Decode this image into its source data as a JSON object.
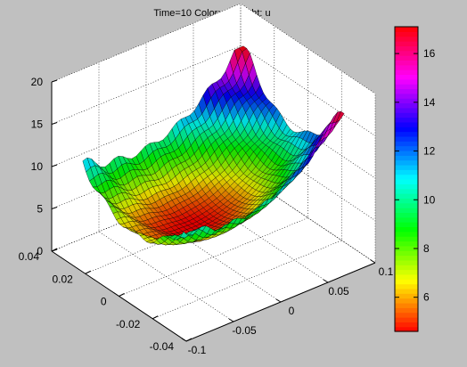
{
  "chart_data": {
    "type": "surface3d",
    "title": "Time=10   Color: u  Height: u",
    "xlabel": "",
    "ylabel": "",
    "zlabel": "",
    "xlim": [
      -0.1,
      0.1
    ],
    "ylim": [
      -0.04,
      0.04
    ],
    "zlim": [
      0,
      20
    ],
    "x_ticks": [
      -0.1,
      -0.05,
      0,
      0.05,
      0.1
    ],
    "x_tick_labels": [
      "-0.1",
      "-0.05",
      "0",
      "0.05",
      "0.1"
    ],
    "y_ticks": [
      -0.04,
      -0.02,
      0,
      0.02,
      0.04
    ],
    "y_tick_labels": [
      "-0.04",
      "-0.02",
      "0",
      "0.02",
      "0.04"
    ],
    "z_ticks": [
      0,
      5,
      10,
      15,
      20
    ],
    "z_tick_labels": [
      "0",
      "5",
      "10",
      "15",
      "20"
    ],
    "grid": true,
    "surface": {
      "description_values": {
        "x_range": [
          -0.085,
          0.085
        ],
        "y_range": [
          -0.03,
          0.03
        ],
        "min_u": 4.6,
        "max_u": 17.0,
        "center_u": 4.8,
        "corner_u_positive_x": 17.0,
        "corner_u_negative_x": 11.0
      }
    },
    "colorbar": {
      "range": [
        4.6,
        17.1
      ],
      "ticks": [
        6,
        8,
        10,
        12,
        14,
        16
      ],
      "tick_labels": [
        "6",
        "8",
        "10",
        "12",
        "14",
        "16"
      ],
      "colormap": "hsv"
    }
  }
}
